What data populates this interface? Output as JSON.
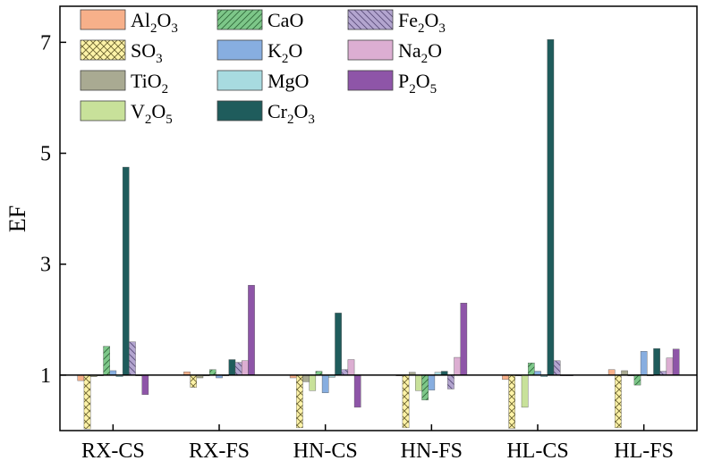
{
  "chart_data": {
    "type": "bar",
    "ylabel": "EF",
    "xlabel": "",
    "ylim": [
      0,
      7.65
    ],
    "baseline": 1,
    "yticks": [
      1,
      3,
      5,
      7
    ],
    "categories": [
      "RX-CS",
      "RX-FS",
      "HN-CS",
      "HN-FS",
      "HL-CS",
      "HL-FS"
    ],
    "legend_position": "top-left",
    "series": [
      {
        "name": "Al2O3",
        "name_parts": [
          [
            "Al",
            0
          ],
          [
            "2",
            1
          ],
          [
            "O",
            0
          ],
          [
            "3",
            1
          ]
        ],
        "color": "#f7b08a",
        "pattern": "none",
        "values": [
          0.9,
          1.06,
          0.95,
          1.0,
          0.92,
          1.1
        ]
      },
      {
        "name": "SO3",
        "name_parts": [
          [
            "SO",
            0
          ],
          [
            "3",
            1
          ]
        ],
        "color": "#fdf3a8",
        "pattern": "cross",
        "values": [
          0.03,
          0.78,
          0.05,
          0.05,
          0.04,
          0.05
        ]
      },
      {
        "name": "TiO2",
        "name_parts": [
          [
            "Ti",
            0
          ],
          [
            "O",
            0
          ],
          [
            "2",
            1
          ]
        ],
        "color": "#a9aa92",
        "pattern": "none",
        "values": [
          0.97,
          0.95,
          0.88,
          1.05,
          1.0,
          1.08
        ]
      },
      {
        "name": "V2O5",
        "name_parts": [
          [
            "V",
            0
          ],
          [
            "2",
            1
          ],
          [
            "O",
            0
          ],
          [
            "5",
            1
          ]
        ],
        "color": "#c8e19a",
        "pattern": "none",
        "values": [
          1.0,
          1.0,
          0.72,
          0.72,
          0.42,
          1.0
        ]
      },
      {
        "name": "CaO",
        "name_parts": [
          [
            "CaO",
            0
          ]
        ],
        "color": "#7dc789",
        "pattern": "diag",
        "values": [
          1.52,
          1.1,
          1.07,
          0.55,
          1.22,
          0.82
        ]
      },
      {
        "name": "K2O",
        "name_parts": [
          [
            "K",
            0
          ],
          [
            "2",
            1
          ],
          [
            "O",
            0
          ]
        ],
        "color": "#87aee0",
        "pattern": "none",
        "values": [
          1.08,
          0.95,
          0.68,
          0.73,
          1.07,
          1.43
        ]
      },
      {
        "name": "MgO",
        "name_parts": [
          [
            "MgO",
            0
          ]
        ],
        "color": "#a8dbe0",
        "pattern": "none",
        "values": [
          0.97,
          1.0,
          0.96,
          1.05,
          0.97,
          1.0
        ]
      },
      {
        "name": "Cr2O3",
        "name_parts": [
          [
            "Cr",
            0
          ],
          [
            "2",
            1
          ],
          [
            "O",
            0
          ],
          [
            "3",
            1
          ]
        ],
        "color": "#1f5c5c",
        "pattern": "none",
        "values": [
          4.75,
          1.28,
          2.12,
          1.07,
          7.05,
          1.48
        ]
      },
      {
        "name": "Fe2O3",
        "name_parts": [
          [
            "Fe",
            0
          ],
          [
            "2",
            1
          ],
          [
            "O",
            0
          ],
          [
            "3",
            1
          ]
        ],
        "color": "#b3a5cf",
        "pattern": "diag2",
        "values": [
          1.6,
          1.23,
          1.1,
          0.75,
          1.26,
          1.07
        ]
      },
      {
        "name": "Na2O",
        "name_parts": [
          [
            "Na",
            0
          ],
          [
            "2",
            1
          ],
          [
            "O",
            0
          ]
        ],
        "color": "#dcaed2",
        "pattern": "none",
        "values": [
          1.0,
          1.26,
          1.28,
          1.32,
          1.0,
          1.31
        ]
      },
      {
        "name": "P2O5",
        "name_parts": [
          [
            "P",
            0
          ],
          [
            "2",
            1
          ],
          [
            "O",
            0
          ],
          [
            "5",
            1
          ]
        ],
        "color": "#8e55a8",
        "pattern": "none",
        "values": [
          0.65,
          2.62,
          0.42,
          2.3,
          1.0,
          1.47
        ]
      }
    ]
  }
}
